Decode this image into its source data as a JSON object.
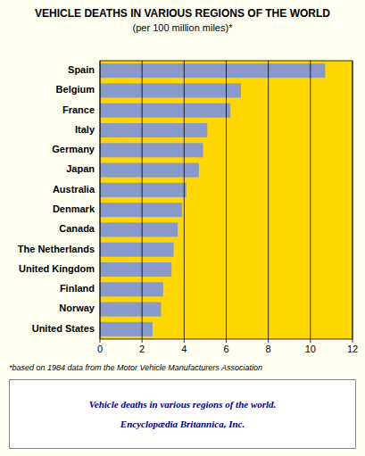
{
  "chart_data": {
    "type": "bar",
    "orientation": "horizontal",
    "title": "VEHICLE DEATHS IN VARIOUS REGIONS OF THE WORLD",
    "subtitle": "(per 100 million miles)*",
    "categories": [
      "Spain",
      "Belgium",
      "France",
      "Italy",
      "Germany",
      "Japan",
      "Australia",
      "Denmark",
      "Canada",
      "The Netherlands",
      "United Kingdom",
      "Finland",
      "Norway",
      "United States"
    ],
    "values": [
      10.7,
      6.7,
      6.2,
      5.1,
      4.9,
      4.7,
      4.1,
      3.9,
      3.7,
      3.5,
      3.4,
      3.0,
      2.9,
      2.5
    ],
    "color": "#8899CC",
    "xlim": [
      0,
      12
    ],
    "xticks": [
      0,
      2,
      4,
      6,
      8,
      10,
      12
    ],
    "grid": true,
    "annotations": [
      "*based on 1984 data from the Motor Vehicle Manufacturers Association",
      "Vehicle deaths in various regions of the world.",
      "Encyclopædia Britannica, Inc."
    ]
  }
}
